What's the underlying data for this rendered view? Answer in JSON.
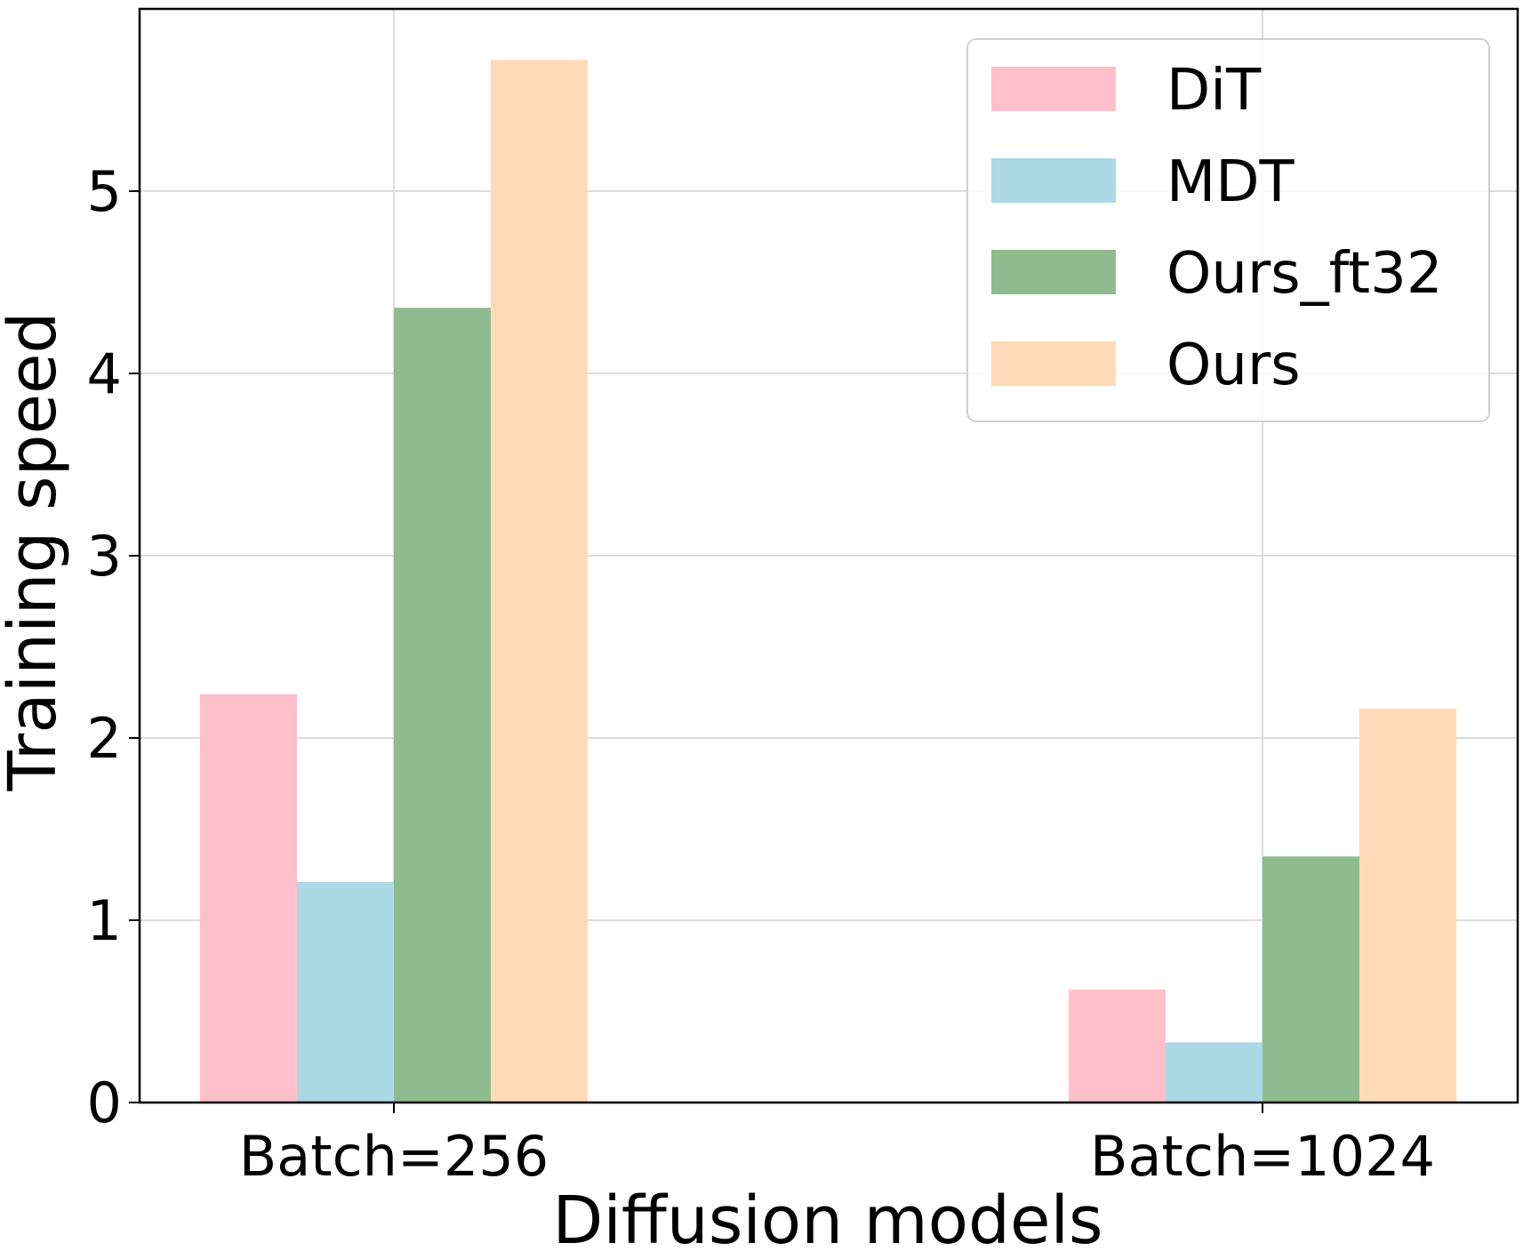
{
  "chart_data": {
    "type": "bar",
    "title": "",
    "xlabel": "Diffusion models",
    "ylabel": "Training speed",
    "categories": [
      "Batch=256",
      "Batch=1024"
    ],
    "series": [
      {
        "name": "DiT",
        "values": [
          2.24,
          0.62
        ],
        "color": "#ffc0cb"
      },
      {
        "name": "MDT",
        "values": [
          1.21,
          0.33
        ],
        "color": "#add8e6"
      },
      {
        "name": "Ours_ft32",
        "values": [
          4.36,
          1.35
        ],
        "color": "#8fbc8f"
      },
      {
        "name": "Ours",
        "values": [
          5.72,
          2.16
        ],
        "color": "#ffdab9"
      }
    ],
    "yticks": [
      "0",
      "1",
      "2",
      "3",
      "4",
      "5"
    ],
    "ylim": [
      0,
      6
    ],
    "grid": true,
    "legend": "top-right"
  }
}
